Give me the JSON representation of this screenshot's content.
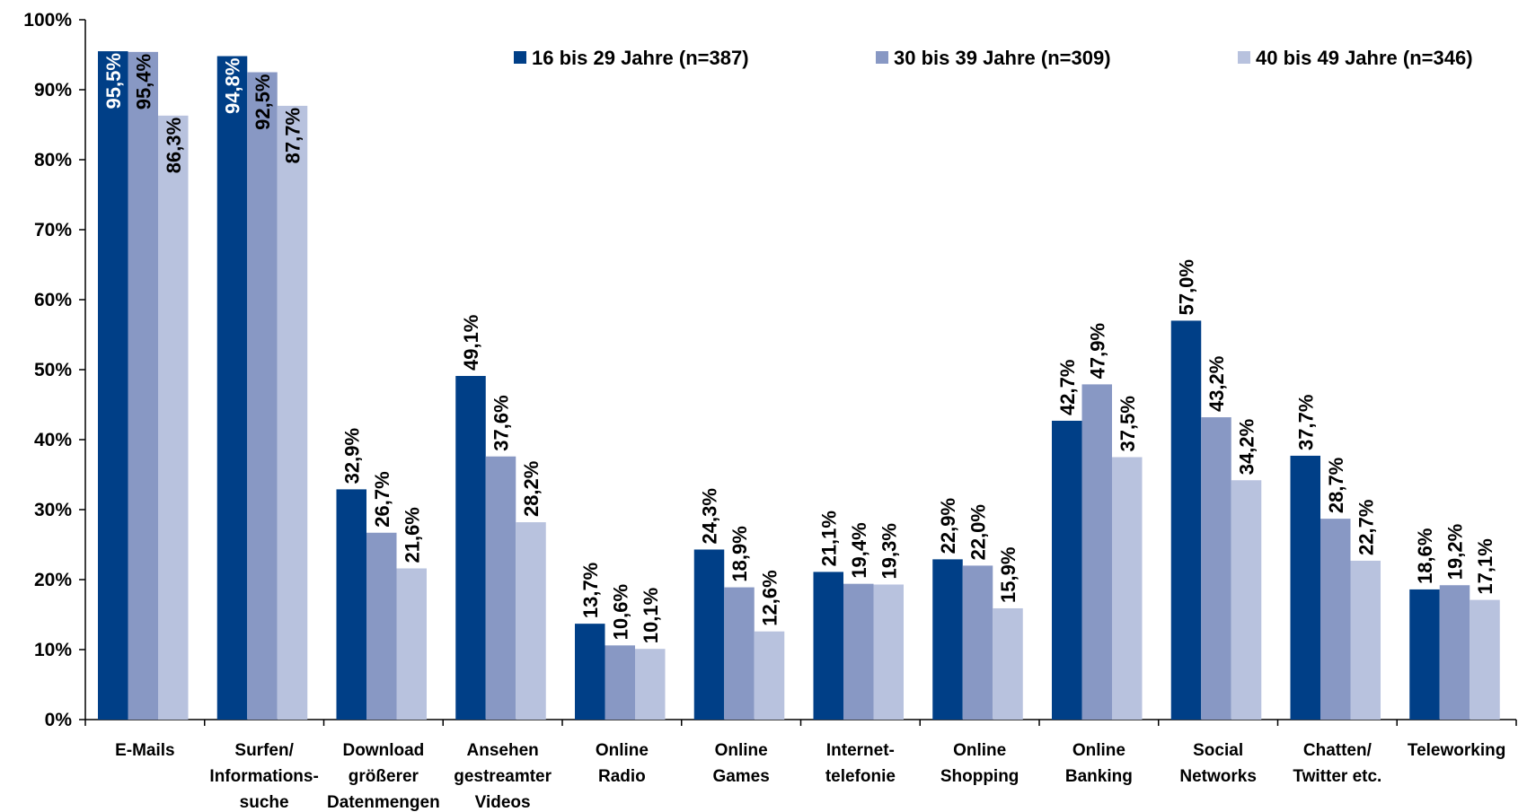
{
  "chart_data": {
    "type": "bar",
    "title": "",
    "xlabel": "",
    "ylabel": "",
    "ylim": [
      0,
      100
    ],
    "y_ticks": [
      "0%",
      "10%",
      "20%",
      "30%",
      "40%",
      "50%",
      "60%",
      "70%",
      "80%",
      "90%",
      "100%"
    ],
    "grid": false,
    "legend_position": "top-right",
    "categories": [
      [
        "E-Mails"
      ],
      [
        "Surfen/",
        "Informations-",
        "suche"
      ],
      [
        "Download",
        "größerer",
        "Datenmengen"
      ],
      [
        "Ansehen",
        "gestreamter",
        "Videos"
      ],
      [
        "Online",
        "Radio"
      ],
      [
        "Online",
        "Games"
      ],
      [
        "Internet-",
        "telefonie"
      ],
      [
        "Online",
        "Shopping"
      ],
      [
        "Online",
        "Banking"
      ],
      [
        "Social",
        "Networks"
      ],
      [
        "Chatten/",
        "Twitter etc."
      ],
      [
        "Teleworking"
      ]
    ],
    "series": [
      {
        "name": "16 bis 29 Jahre (n=387)",
        "color": "#003f87",
        "values": [
          95.5,
          94.8,
          32.9,
          49.1,
          13.7,
          24.3,
          21.1,
          22.9,
          42.7,
          57.0,
          37.7,
          18.6
        ],
        "labels": [
          "95,5%",
          "94,8%",
          "32,9%",
          "49,1%",
          "13,7%",
          "24,3%",
          "21,1%",
          "22,9%",
          "42,7%",
          "57,0%",
          "37,7%",
          "18,6%"
        ]
      },
      {
        "name": "30 bis 39 Jahre (n=309)",
        "color": "#8898c4",
        "values": [
          95.4,
          92.5,
          26.7,
          37.6,
          10.6,
          18.9,
          19.4,
          22.0,
          47.9,
          43.2,
          28.7,
          19.2
        ],
        "labels": [
          "95,4%",
          "92,5%",
          "26,7%",
          "37,6%",
          "10,6%",
          "18,9%",
          "19,4%",
          "22,0%",
          "47,9%",
          "43,2%",
          "28,7%",
          "19,2%"
        ]
      },
      {
        "name": "40 bis 49 Jahre (n=346)",
        "color": "#b8c2de",
        "values": [
          86.3,
          87.7,
          21.6,
          28.2,
          10.1,
          12.6,
          19.3,
          15.9,
          37.5,
          34.2,
          22.7,
          17.1
        ],
        "labels": [
          "86,3%",
          "87,7%",
          "21,6%",
          "28,2%",
          "10,1%",
          "12,6%",
          "19,3%",
          "15,9%",
          "37,5%",
          "34,2%",
          "22,7%",
          "17,1%"
        ]
      }
    ]
  }
}
